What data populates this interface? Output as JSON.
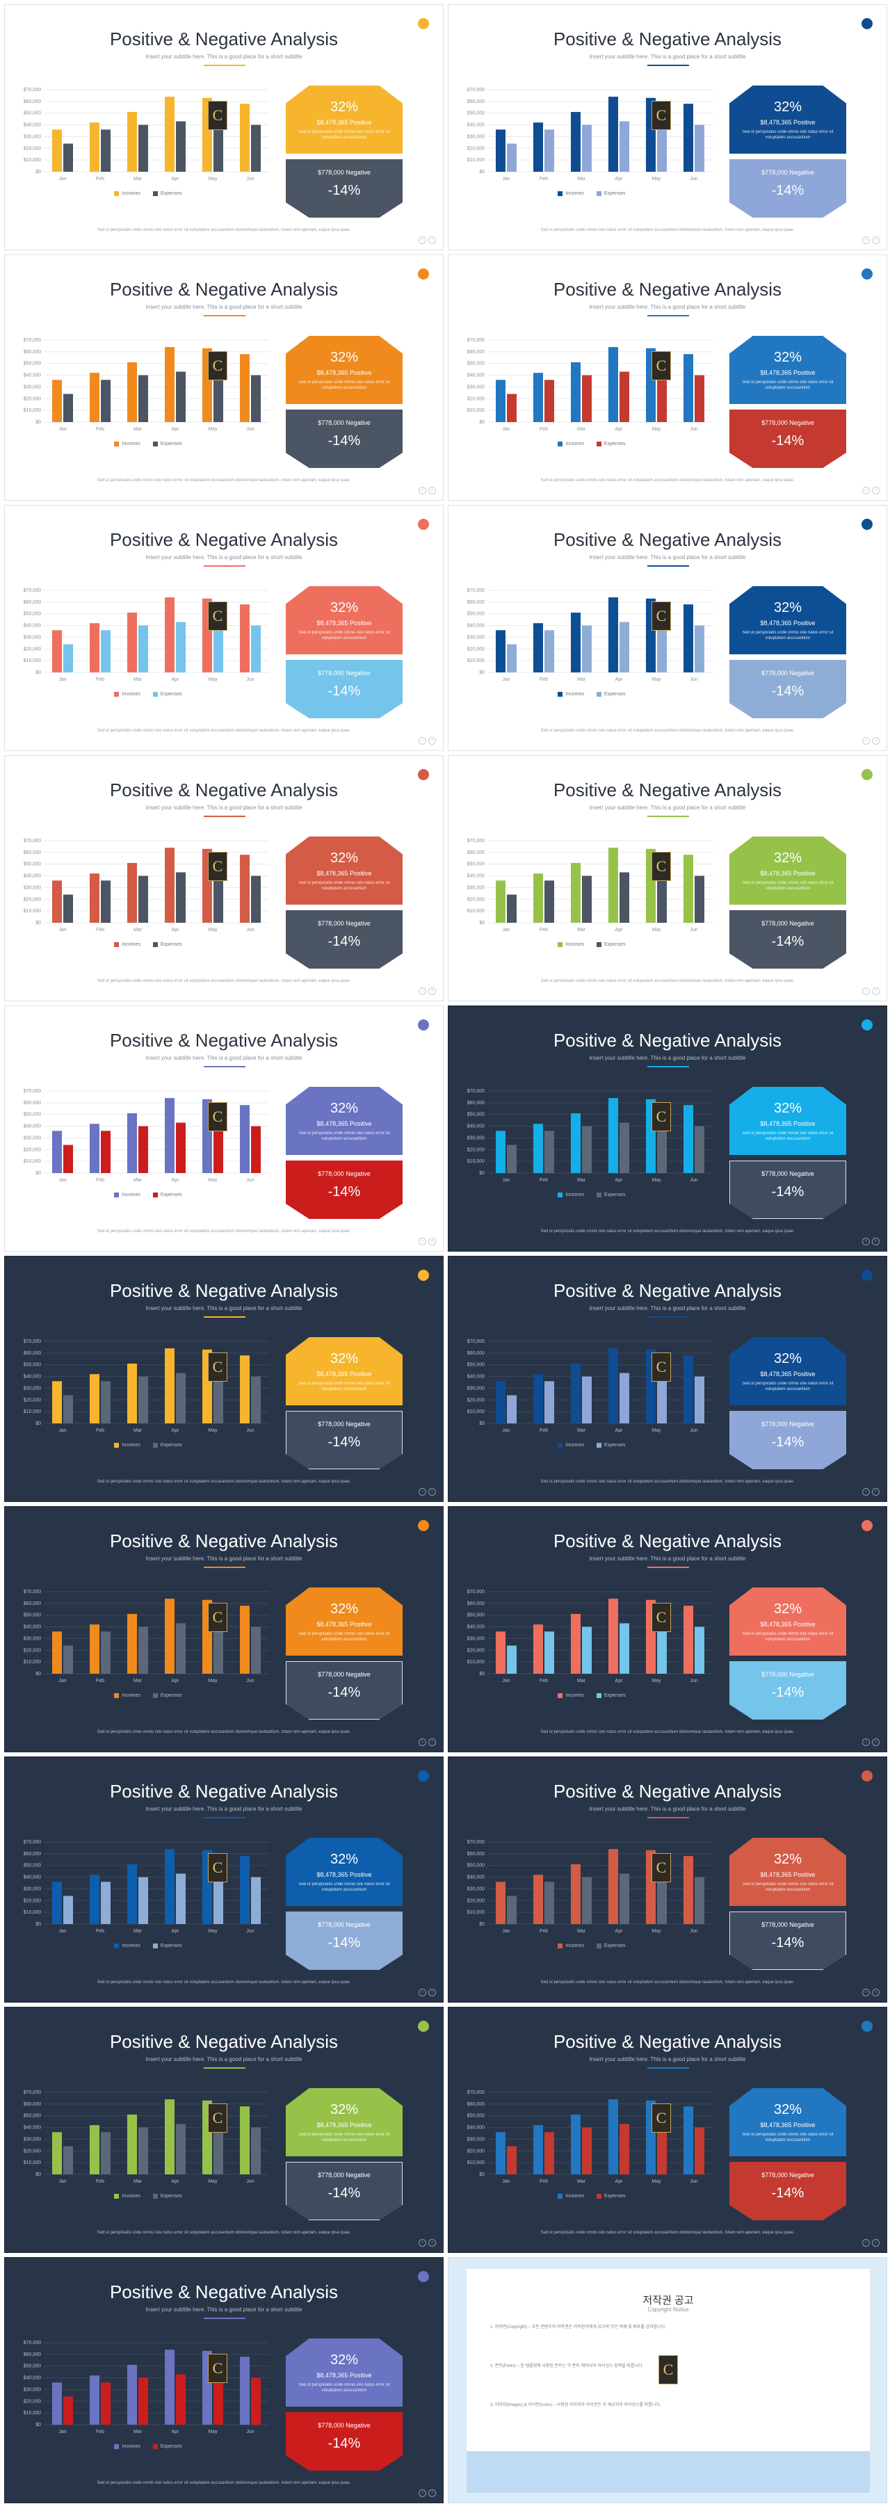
{
  "slide_common": {
    "title": "Positive & Negative Analysis",
    "subtitle": "Insert your subtitle here. This is a good place for a short subtitle",
    "positive_percent": "32%",
    "positive_value": "$8,478,365",
    "positive_label": "Positive",
    "positive_text": "Sed ut perspiciatis unde omnis iste natus error sit voluptatem accusantium",
    "negative_value": "$778,000",
    "negative_label": "Negative",
    "negative_percent": "-14%",
    "legend_income": "Incomes",
    "legend_expense": "Expenses",
    "body_text": "Sed ut perspiciatis unde omnis iste natus error sit voluptatem accusantium doloremque laudantium, totam rem aperiam, eaque ipsa quae.",
    "nav_prev": "‹",
    "nav_next": "›",
    "badge_letter": "C"
  },
  "chart_data": {
    "type": "bar",
    "categories": [
      "Jan",
      "Feb",
      "Mar",
      "Apr",
      "May",
      "Jun"
    ],
    "series": [
      {
        "name": "Incomes",
        "values": [
          36000,
          42000,
          51000,
          64000,
          63000,
          58000
        ]
      },
      {
        "name": "Expenses",
        "values": [
          24000,
          36000,
          40000,
          43000,
          44000,
          40000
        ]
      }
    ],
    "yticks": [
      "$0",
      "$10,000",
      "$20,000",
      "$30,000",
      "$40,000",
      "$50,000",
      "$60,000",
      "$70,000"
    ],
    "ylim": [
      0,
      70000
    ]
  },
  "slides": [
    {
      "theme": "light",
      "accent": "#f6b52c",
      "income": "#f6b52c",
      "expense": "#4b5563",
      "top": "#f6b52c",
      "bottom": "#4b5563"
    },
    {
      "theme": "light",
      "accent": "#0f4c92",
      "income": "#0f4c92",
      "expense": "#8fa6d8",
      "top": "#0f4c92",
      "bottom": "#8fa6d8"
    },
    {
      "theme": "light",
      "accent": "#f08a1c",
      "income": "#f08a1c",
      "expense": "#4b5563",
      "top": "#f08a1c",
      "bottom": "#4b5563"
    },
    {
      "theme": "light",
      "accent": "#2277c1",
      "income": "#2277c1",
      "expense": "#c43a30",
      "top": "#2277c1",
      "bottom": "#c43a30"
    },
    {
      "theme": "light",
      "accent": "#ef6f5e",
      "income": "#ef6f5e",
      "expense": "#74c4eb",
      "top": "#ef6f5e",
      "bottom": "#74c4eb"
    },
    {
      "theme": "light",
      "accent": "#0d4f95",
      "income": "#0d4f95",
      "expense": "#8eadd6",
      "top": "#0d4f95",
      "bottom": "#8eadd6"
    },
    {
      "theme": "light",
      "accent": "#d45b45",
      "income": "#d45b45",
      "expense": "#4b5563",
      "top": "#d45b45",
      "bottom": "#4b5563"
    },
    {
      "theme": "light",
      "accent": "#96c24a",
      "income": "#96c24a",
      "expense": "#4b5563",
      "top": "#96c24a",
      "bottom": "#4b5563"
    },
    {
      "theme": "light",
      "accent": "#6a74c2",
      "income": "#6a74c2",
      "expense": "#cc1d1d",
      "top": "#6a74c2",
      "bottom": "#cc1d1d"
    },
    {
      "theme": "dark",
      "accent": "#15aee8",
      "income": "#15aee8",
      "expense": "#5c6878",
      "top": "#15aee8",
      "bottom": "#3f4c60"
    },
    {
      "theme": "dark",
      "accent": "#f6b52c",
      "income": "#f6b52c",
      "expense": "#5c6878",
      "top": "#f6b52c",
      "bottom": "#3f4c60"
    },
    {
      "theme": "dark",
      "accent": "#0f4c92",
      "income": "#0f4c92",
      "expense": "#8fa6d8",
      "top": "#0f4c92",
      "bottom": "#8fa6d8"
    },
    {
      "theme": "dark",
      "accent": "#f08a1c",
      "income": "#f08a1c",
      "expense": "#5c6878",
      "top": "#f08a1c",
      "bottom": "#3f4c60"
    },
    {
      "theme": "dark",
      "accent": "#ef6f5e",
      "income": "#ef6f5e",
      "expense": "#74c4eb",
      "top": "#ef6f5e",
      "bottom": "#74c4eb"
    },
    {
      "theme": "dark",
      "accent": "#0d5eac",
      "income": "#0d5eac",
      "expense": "#8eadd6",
      "top": "#0d5eac",
      "bottom": "#8eadd6"
    },
    {
      "theme": "dark",
      "accent": "#d45b45",
      "income": "#d45b45",
      "expense": "#5c6878",
      "top": "#d45b45",
      "bottom": "#3f4c60"
    },
    {
      "theme": "dark",
      "accent": "#96c24a",
      "income": "#96c24a",
      "expense": "#5c6878",
      "top": "#96c24a",
      "bottom": "#3f4c60"
    },
    {
      "theme": "dark",
      "accent": "#2277c1",
      "income": "#2277c1",
      "expense": "#c43a30",
      "top": "#2277c1",
      "bottom": "#c43a30"
    },
    {
      "theme": "dark",
      "accent": "#6a74c2",
      "income": "#6a74c2",
      "expense": "#cc1d1d",
      "top": "#6a74c2",
      "bottom": "#cc1d1d"
    }
  ],
  "copyright": {
    "title": "저작권 공고",
    "subtitle": "Copyright Notice",
    "paragraphs": [
      "1. 저작권(Copyright) – 모든 콘텐츠의 저작권은 저작권자에게 있으며 무단 복제 및 배포를 금지합니다.",
      "2. 폰트(Fonts) – 본 템플릿에 사용된 폰트는 각 폰트 제작사의 라이선스 정책을 따릅니다.",
      "3. 이미지(Images) & 아이콘(Icons) – 사용된 이미지와 아이콘은 각 제공처의 라이선스를 따릅니다."
    ],
    "badge_letter": "C"
  }
}
